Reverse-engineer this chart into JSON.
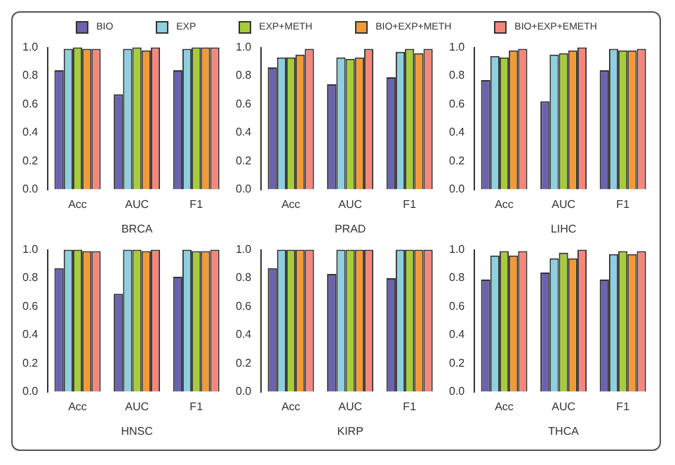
{
  "chart_data": [
    {
      "type": "bar",
      "xlabel": "BRCA",
      "categories": [
        "Acc",
        "AUC",
        "F1"
      ],
      "ylim": [
        0,
        1
      ],
      "yticks": [
        {
          "value": 0,
          "label": "0.0"
        },
        {
          "value": 0.2,
          "label": "0.2"
        },
        {
          "value": 0.4,
          "label": "0.4"
        },
        {
          "value": 0.6,
          "label": "0.6"
        },
        {
          "value": 0.8,
          "label": "0.8"
        },
        {
          "value": 1,
          "label": "1.0"
        }
      ],
      "grid": false,
      "legend": "top",
      "series": [
        {
          "name": "BIO",
          "color": "#6b63ad",
          "values": [
            0.84,
            0.67,
            0.84
          ]
        },
        {
          "name": "EXP",
          "color": "#8ecfe0",
          "values": [
            0.99,
            0.99,
            0.99
          ]
        },
        {
          "name": "EXP+METH",
          "color": "#a6cc3a",
          "values": [
            1.0,
            1.0,
            1.0
          ]
        },
        {
          "name": "BIO+EXP+METH",
          "color": "#f29a38",
          "values": [
            0.99,
            0.98,
            1.0
          ]
        },
        {
          "name": "BIO+EXP+EMETH",
          "color": "#f4877c",
          "values": [
            0.99,
            1.0,
            1.0
          ]
        }
      ]
    },
    {
      "type": "bar",
      "xlabel": "PRAD",
      "categories": [
        "Acc",
        "AUC",
        "F1"
      ],
      "ylim": [
        0,
        1
      ],
      "yticks": [
        {
          "value": 0,
          "label": "0.0"
        },
        {
          "value": 0.2,
          "label": "0.2"
        },
        {
          "value": 0.4,
          "label": "0.4"
        },
        {
          "value": 0.6,
          "label": "0.6"
        },
        {
          "value": 0.8,
          "label": "0.8"
        },
        {
          "value": 1,
          "label": "1.0"
        }
      ],
      "grid": false,
      "series": [
        {
          "color": "#6b63ad",
          "values": [
            0.86,
            0.74,
            0.79
          ]
        },
        {
          "color": "#8ecfe0",
          "values": [
            0.93,
            0.93,
            0.97
          ]
        },
        {
          "color": "#a6cc3a",
          "values": [
            0.93,
            0.92,
            0.99
          ]
        },
        {
          "color": "#f29a38",
          "values": [
            0.95,
            0.93,
            0.96
          ]
        },
        {
          "color": "#f4877c",
          "values": [
            0.99,
            0.99,
            0.99
          ]
        }
      ]
    },
    {
      "type": "bar",
      "xlabel": "LIHC",
      "categories": [
        "Acc",
        "AUC",
        "F1"
      ],
      "ylim": [
        0,
        1
      ],
      "yticks": [
        {
          "value": 0,
          "label": "0.0"
        },
        {
          "value": 0.2,
          "label": "0.2"
        },
        {
          "value": 0.4,
          "label": "0.4"
        },
        {
          "value": 0.6,
          "label": "0.6"
        },
        {
          "value": 0.8,
          "label": "0.8"
        },
        {
          "value": 1,
          "label": "1.0"
        }
      ],
      "grid": false,
      "series": [
        {
          "color": "#6b63ad",
          "values": [
            0.77,
            0.62,
            0.84
          ]
        },
        {
          "color": "#8ecfe0",
          "values": [
            0.94,
            0.95,
            0.99
          ]
        },
        {
          "color": "#a6cc3a",
          "values": [
            0.93,
            0.96,
            0.98
          ]
        },
        {
          "color": "#f29a38",
          "values": [
            0.98,
            0.98,
            0.98
          ]
        },
        {
          "color": "#f4877c",
          "values": [
            0.99,
            1.0,
            0.99
          ]
        }
      ]
    },
    {
      "type": "bar",
      "xlabel": "HNSC",
      "categories": [
        "Acc",
        "AUC",
        "F1"
      ],
      "ylim": [
        0,
        1
      ],
      "yticks": [
        {
          "value": 0,
          "label": "0.0"
        },
        {
          "value": 0.2,
          "label": "0.2"
        },
        {
          "value": 0.4,
          "label": "0.4"
        },
        {
          "value": 0.6,
          "label": "0.6"
        },
        {
          "value": 0.8,
          "label": "0.8"
        },
        {
          "value": 1,
          "label": "1.0"
        }
      ],
      "grid": false,
      "series": [
        {
          "color": "#6b63ad",
          "values": [
            0.87,
            0.69,
            0.81
          ]
        },
        {
          "color": "#8ecfe0",
          "values": [
            1.0,
            1.0,
            1.0
          ]
        },
        {
          "color": "#a6cc3a",
          "values": [
            1.0,
            1.0,
            0.99
          ]
        },
        {
          "color": "#f29a38",
          "values": [
            0.99,
            0.99,
            0.99
          ]
        },
        {
          "color": "#f4877c",
          "values": [
            0.99,
            1.0,
            1.0
          ]
        }
      ]
    },
    {
      "type": "bar",
      "xlabel": "KIRP",
      "categories": [
        "Acc",
        "AUC",
        "F1"
      ],
      "ylim": [
        0,
        1
      ],
      "yticks": [
        {
          "value": 0,
          "label": "0.0"
        },
        {
          "value": 0.2,
          "label": "0.2"
        },
        {
          "value": 0.4,
          "label": "0.4"
        },
        {
          "value": 0.6,
          "label": "0.6"
        },
        {
          "value": 0.8,
          "label": "0.8"
        },
        {
          "value": 1,
          "label": "1.0"
        }
      ],
      "grid": false,
      "series": [
        {
          "color": "#6b63ad",
          "values": [
            0.87,
            0.83,
            0.8
          ]
        },
        {
          "color": "#8ecfe0",
          "values": [
            1.0,
            1.0,
            1.0
          ]
        },
        {
          "color": "#a6cc3a",
          "values": [
            1.0,
            1.0,
            1.0
          ]
        },
        {
          "color": "#f29a38",
          "values": [
            1.0,
            1.0,
            1.0
          ]
        },
        {
          "color": "#f4877c",
          "values": [
            1.0,
            1.0,
            1.0
          ]
        }
      ]
    },
    {
      "type": "bar",
      "xlabel": "THCA",
      "categories": [
        "Acc",
        "AUC",
        "F1"
      ],
      "ylim": [
        0,
        1
      ],
      "yticks": [
        {
          "value": 0,
          "label": "0.0"
        },
        {
          "value": 0.2,
          "label": "0.2"
        },
        {
          "value": 0.4,
          "label": "0.4"
        },
        {
          "value": 0.6,
          "label": "0.6"
        },
        {
          "value": 0.8,
          "label": "0.8"
        },
        {
          "value": 1,
          "label": "1.0"
        }
      ],
      "grid": false,
      "series": [
        {
          "color": "#6b63ad",
          "values": [
            0.79,
            0.84,
            0.79
          ]
        },
        {
          "color": "#8ecfe0",
          "values": [
            0.96,
            0.94,
            0.97
          ]
        },
        {
          "color": "#a6cc3a",
          "values": [
            0.99,
            0.98,
            0.99
          ]
        },
        {
          "color": "#f29a38",
          "values": [
            0.96,
            0.94,
            0.97
          ]
        },
        {
          "color": "#f4877c",
          "values": [
            0.99,
            1.0,
            0.99
          ]
        }
      ]
    }
  ]
}
